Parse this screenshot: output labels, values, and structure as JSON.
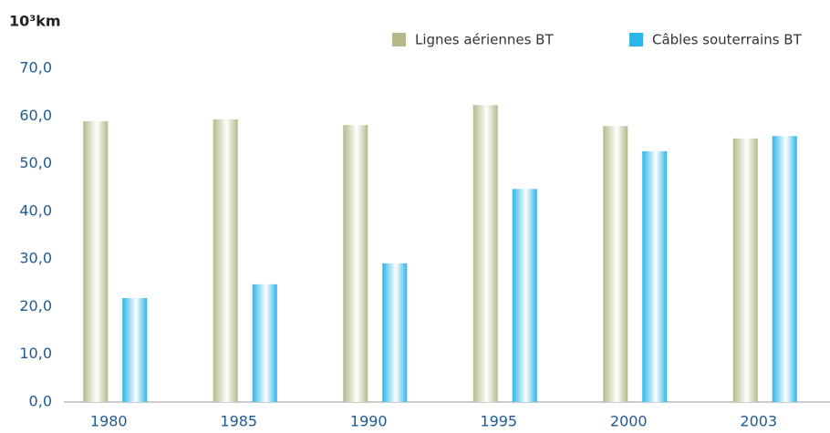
{
  "chart_data": {
    "type": "bar",
    "y_label": "10³km",
    "categories": [
      "1980",
      "1985",
      "1990",
      "1995",
      "2000",
      "2003"
    ],
    "series": [
      {
        "name": "Lignes aériennes BT",
        "color": "#b5b98a",
        "values": [
          58.9,
          59.3,
          58.1,
          62.3,
          57.9,
          55.3
        ]
      },
      {
        "name": "Câbles souterrains BT",
        "color": "#2cb5e8",
        "values": [
          21.8,
          24.7,
          29.1,
          44.7,
          52.6,
          55.8
        ]
      }
    ],
    "ylim": [
      0,
      70
    ],
    "yticks": [
      {
        "value": 0,
        "label": "0,0"
      },
      {
        "value": 10,
        "label": "10,0"
      },
      {
        "value": 20,
        "label": "20,0"
      },
      {
        "value": 30,
        "label": "30,0"
      },
      {
        "value": 40,
        "label": "40,0"
      },
      {
        "value": 50,
        "label": "50,0"
      },
      {
        "value": 60,
        "label": "60,0"
      },
      {
        "value": 70,
        "label": "70,0"
      }
    ],
    "legend": "top-right"
  }
}
